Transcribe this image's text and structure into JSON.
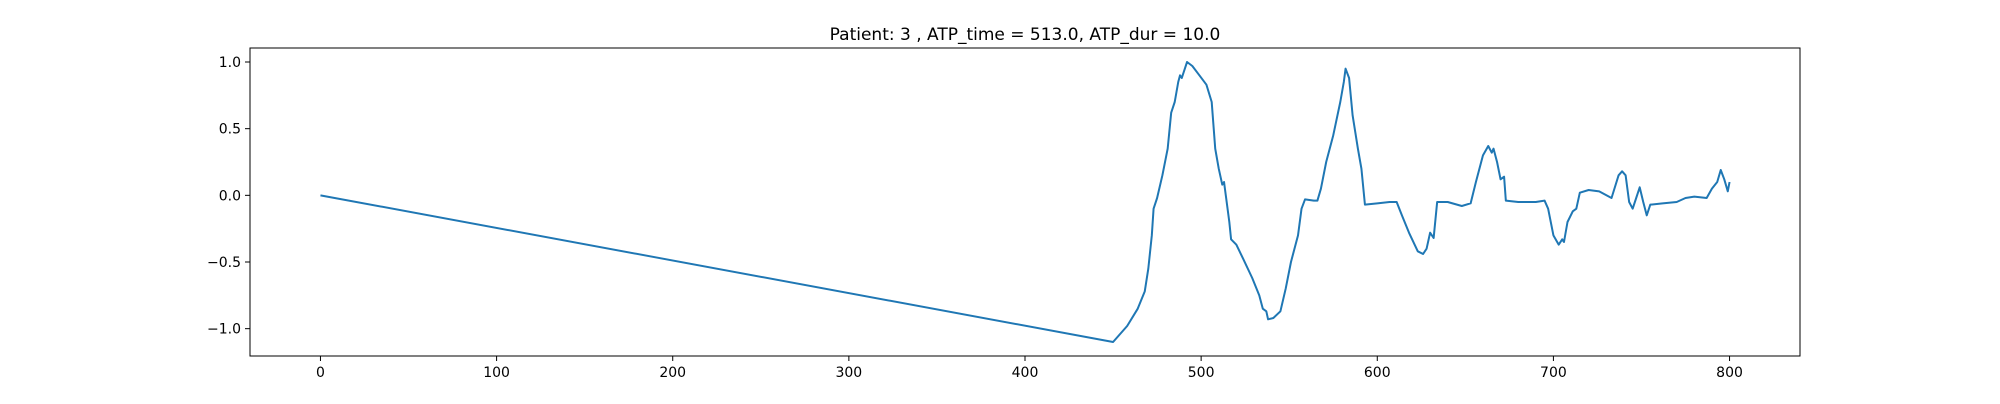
{
  "chart_data": {
    "type": "line",
    "title": "Patient: 3 , ATP_time = 513.0, ATP_dur = 10.0",
    "color": "#1f77b4",
    "x": [
      0,
      450,
      458,
      464,
      468,
      470,
      472,
      473,
      475,
      478,
      481,
      483,
      485,
      487,
      488,
      489,
      490,
      492,
      495,
      499,
      503,
      506,
      508,
      510,
      512,
      513,
      514,
      516,
      517,
      520,
      524,
      529,
      533,
      535,
      537,
      538,
      541,
      545,
      548,
      551,
      555,
      557,
      559,
      564,
      566,
      568,
      571,
      575,
      579,
      581,
      582,
      584,
      586,
      589,
      591,
      593,
      600,
      607,
      611,
      614,
      618,
      623,
      626,
      628,
      630,
      632,
      634,
      640,
      648,
      653,
      656,
      660,
      663,
      665,
      666,
      668,
      670,
      672,
      673,
      680,
      690,
      695,
      697,
      700,
      703,
      705,
      706,
      708,
      711,
      713,
      715,
      720,
      726,
      733,
      737,
      739,
      741,
      743,
      745,
      747,
      749,
      751,
      753,
      755,
      762,
      770,
      775,
      780,
      787,
      790,
      793,
      795,
      797,
      799,
      800
    ],
    "values": [
      0.0,
      -1.1,
      -0.98,
      -0.85,
      -0.72,
      -0.55,
      -0.3,
      -0.1,
      -0.02,
      0.15,
      0.35,
      0.62,
      0.7,
      0.85,
      0.9,
      0.88,
      0.92,
      1.0,
      0.97,
      0.9,
      0.83,
      0.7,
      0.35,
      0.2,
      0.08,
      0.1,
      0.0,
      -0.2,
      -0.33,
      -0.37,
      -0.48,
      -0.62,
      -0.75,
      -0.85,
      -0.87,
      -0.93,
      -0.92,
      -0.87,
      -0.7,
      -0.5,
      -0.3,
      -0.1,
      -0.03,
      -0.04,
      -0.04,
      0.05,
      0.25,
      0.45,
      0.7,
      0.85,
      0.95,
      0.88,
      0.6,
      0.35,
      0.2,
      -0.07,
      -0.06,
      -0.05,
      -0.05,
      -0.15,
      -0.28,
      -0.42,
      -0.44,
      -0.4,
      -0.28,
      -0.32,
      -0.05,
      -0.05,
      -0.08,
      -0.06,
      0.1,
      0.3,
      0.37,
      0.32,
      0.35,
      0.25,
      0.12,
      0.14,
      -0.04,
      -0.05,
      -0.05,
      -0.04,
      -0.1,
      -0.3,
      -0.37,
      -0.33,
      -0.35,
      -0.2,
      -0.12,
      -0.1,
      0.02,
      0.04,
      0.03,
      -0.02,
      0.15,
      0.18,
      0.15,
      -0.05,
      -0.1,
      -0.02,
      0.06,
      -0.05,
      -0.15,
      -0.07,
      -0.06,
      -0.05,
      -0.02,
      -0.01,
      -0.02,
      0.05,
      0.1,
      0.19,
      0.12,
      0.03,
      0.1
    ],
    "xlim": [
      -40,
      840
    ],
    "xticks": [
      0,
      100,
      200,
      300,
      400,
      500,
      600,
      700,
      800
    ],
    "ylim": [
      -1.205,
      1.105
    ],
    "yticks": [
      {
        "value": -1,
        "label": "−1.0"
      },
      {
        "value": -0.5,
        "label": "−0.5"
      },
      {
        "value": 0,
        "label": "0.0"
      },
      {
        "value": 0.5,
        "label": "0.5"
      },
      {
        "value": 1,
        "label": "1.0"
      }
    ],
    "grid": false
  }
}
